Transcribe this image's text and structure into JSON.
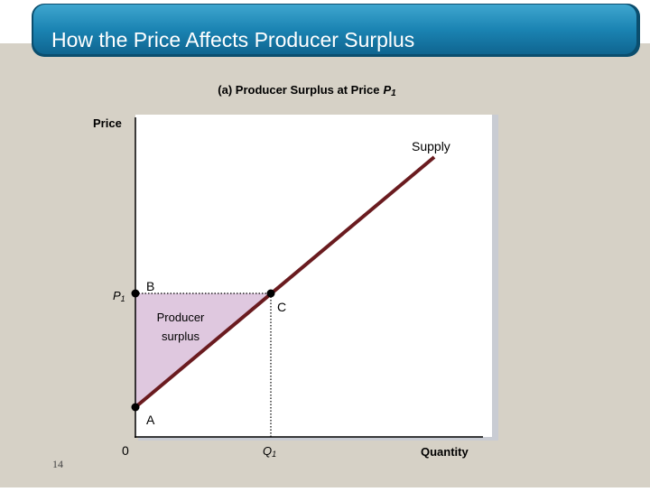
{
  "header": {
    "title": "How the Price Affects Producer Surplus"
  },
  "figure": {
    "caption": "(a)  Producer Surplus at Price",
    "caption_symbol": "P",
    "caption_subscript": "1",
    "y_axis_label": "Price",
    "x_axis_label": "Quantity",
    "origin_label": "0",
    "price_label": "P",
    "price_subscript": "1",
    "quantity_label": "Q",
    "quantity_subscript": "1",
    "curve_label": "Supply",
    "points": [
      "A",
      "B",
      "C"
    ],
    "area_label": [
      "Producer",
      "surplus"
    ]
  },
  "footer": {
    "page_number": "14"
  }
}
